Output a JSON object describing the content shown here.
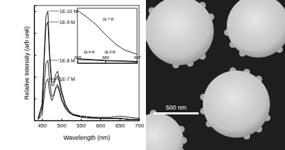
{
  "chart_data": [
    {
      "type": "line",
      "x_label": "Wavelength (nm)",
      "y_label": "Relative Intensity (arb unit)",
      "x": [
        440,
        450,
        455,
        460,
        465,
        470,
        475,
        480,
        485,
        490,
        495,
        500,
        510,
        520,
        530,
        550,
        575,
        600,
        625,
        650,
        675,
        700
      ],
      "series": [
        {
          "name": "1E-10 M",
          "color": "#000000",
          "values": [
            0.02,
            0.15,
            0.55,
            0.95,
            1.0,
            0.6,
            0.35,
            0.35,
            0.42,
            0.45,
            0.38,
            0.28,
            0.15,
            0.09,
            0.06,
            0.04,
            0.03,
            0.02,
            0.02,
            0.02,
            0.01,
            0.01
          ]
        },
        {
          "name": "1E-9 M",
          "color": "#000000",
          "values": [
            0.02,
            0.13,
            0.5,
            0.86,
            0.9,
            0.54,
            0.32,
            0.32,
            0.38,
            0.41,
            0.34,
            0.25,
            0.14,
            0.08,
            0.05,
            0.04,
            0.03,
            0.02,
            0.02,
            0.02,
            0.01,
            0.01
          ]
        },
        {
          "name": "1E-8 M",
          "color": "#000000",
          "values": [
            0.01,
            0.09,
            0.31,
            0.52,
            0.55,
            0.34,
            0.22,
            0.23,
            0.29,
            0.31,
            0.26,
            0.19,
            0.11,
            0.07,
            0.05,
            0.03,
            0.02,
            0.02,
            0.02,
            0.02,
            0.01,
            0.01
          ]
        },
        {
          "name": "1E-7 M",
          "color": "#000000",
          "values": [
            0.01,
            0.05,
            0.2,
            0.35,
            0.38,
            0.25,
            0.18,
            0.22,
            0.3,
            0.33,
            0.28,
            0.2,
            0.12,
            0.07,
            0.05,
            0.04,
            0.03,
            0.03,
            0.03,
            0.04,
            0.03,
            0.02
          ]
        }
      ],
      "xlim": [
        430,
        700
      ],
      "xticks": [
        450,
        500,
        550,
        600,
        650,
        700
      ],
      "ylim": [
        0,
        1.05
      ],
      "yticks": [
        0,
        0.2,
        0.4,
        0.6,
        0.8,
        1.0
      ],
      "tick_labels": "x"
    },
    {
      "type": "line",
      "x": [
        665,
        670,
        675,
        680,
        685,
        690,
        697
      ],
      "series": [
        {
          "name": "1E-7 M",
          "color": "#000000",
          "values": [
            0.048,
            0.042,
            0.035,
            0.026,
            0.018,
            0.012,
            0.008
          ]
        },
        {
          "name": "1E-8 M",
          "color": "#000000",
          "values": [
            0.004,
            0.0035,
            0.003,
            0.0025,
            0.002,
            0.002,
            0.0015
          ]
        },
        {
          "name": "1E-9 M",
          "color": "#000000",
          "values": [
            0.003,
            0.0028,
            0.0025,
            0.002,
            0.0018,
            0.0015,
            0.001
          ]
        }
      ],
      "xlim": [
        665,
        697
      ],
      "xticks": [
        665,
        680,
        697
      ],
      "ylim": [
        0,
        0.05
      ],
      "tick_labels": "x"
    }
  ],
  "image": {
    "scale_bar_label": "500 nm"
  }
}
